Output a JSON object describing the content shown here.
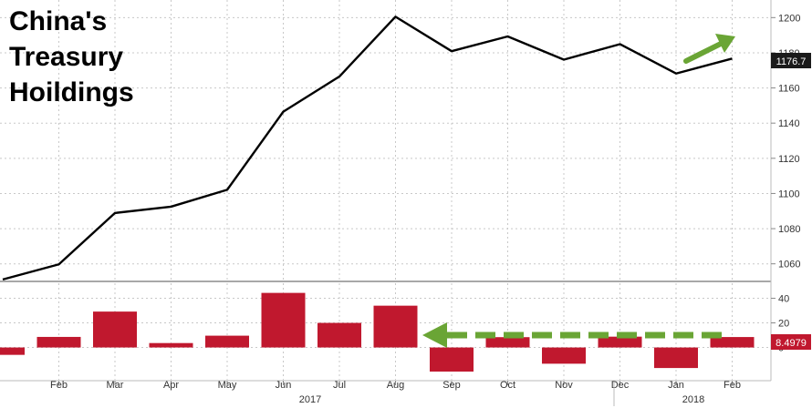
{
  "chart_data": [
    {
      "type": "line",
      "title_lines": [
        "China's",
        "Treasury",
        "Hoildings"
      ],
      "x": [
        "2017-01",
        "2017-02",
        "2017-03",
        "2017-04",
        "2017-05",
        "2017-06",
        "2017-07",
        "2017-08",
        "2017-09",
        "2017-10",
        "2017-11",
        "2017-12",
        "2018-01",
        "2018-02"
      ],
      "values": [
        1051.1,
        1059.7,
        1088.9,
        1092.5,
        1102.1,
        1146.5,
        1166.5,
        1200.5,
        1180.9,
        1189.3,
        1176.1,
        1184.9,
        1168.2,
        1176.7
      ],
      "ylim": [
        1050,
        1210
      ],
      "yticks": [
        1060,
        1080,
        1100,
        1120,
        1140,
        1160,
        1180,
        1200
      ],
      "last_value_label": "1176.7",
      "line_color": "#000000",
      "annotation": {
        "type": "arrow",
        "direction": "up-right",
        "color": "#6aa535"
      },
      "grid": true
    },
    {
      "type": "bar",
      "x": [
        "2017-01",
        "2017-02",
        "2017-03",
        "2017-04",
        "2017-05",
        "2017-06",
        "2017-07",
        "2017-08",
        "2017-09",
        "2017-10",
        "2017-11",
        "2017-12",
        "2018-01",
        "2018-02"
      ],
      "values": [
        -6,
        8.6,
        29.2,
        3.6,
        9.6,
        44.4,
        20,
        34,
        -19.6,
        8.4,
        -13.2,
        8.8,
        -16.7,
        8.4979
      ],
      "ylim": [
        -27,
        53
      ],
      "yticks": [
        0,
        20,
        40
      ],
      "last_value_label": "8.4979",
      "bar_color": "#c0182e",
      "annotation": {
        "type": "dashed-arrow",
        "direction": "left",
        "color": "#6aa535"
      },
      "grid": true
    }
  ],
  "x_axis": {
    "month_labels": [
      "Feb",
      "Mar",
      "Apr",
      "May",
      "Jun",
      "Jul",
      "Aug",
      "Sep",
      "Oct",
      "Nov",
      "Dec",
      "Jan",
      "Feb"
    ],
    "year_labels": [
      "2017",
      "2018"
    ]
  }
}
